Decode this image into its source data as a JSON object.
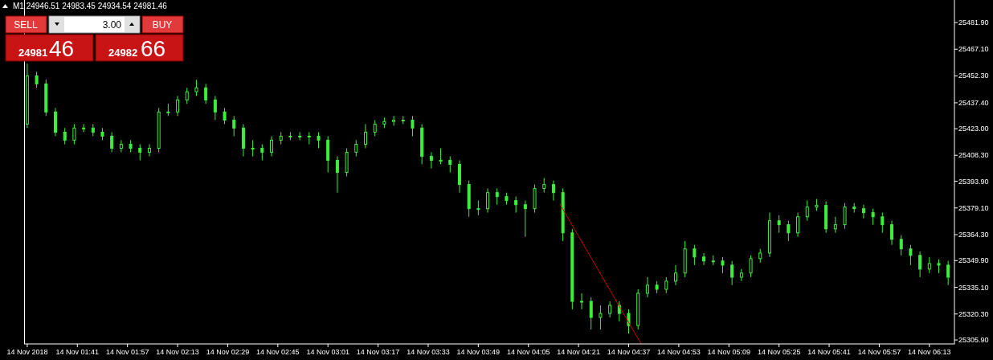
{
  "chart_data": {
    "type": "candlestick",
    "title": "M1  24946.51 24983.45 24934.54 24981.46",
    "color": "#3cf03c",
    "x": [
      "2018-11-14T01:25",
      "2018-11-14T01:28",
      "2018-11-14T01:31",
      "2018-11-14T01:34",
      "2018-11-14T01:37",
      "2018-11-14T01:40",
      "2018-11-14T01:43",
      "2018-11-14T01:46",
      "2018-11-14T01:49",
      "2018-11-14T01:52",
      "2018-11-14T01:55",
      "2018-11-14T01:58",
      "2018-11-14T02:01",
      "2018-11-14T02:04",
      "2018-11-14T02:07",
      "2018-11-14T02:10",
      "2018-11-14T02:13",
      "2018-11-14T02:16",
      "2018-11-14T02:19",
      "2018-11-14T02:22",
      "2018-11-14T02:25",
      "2018-11-14T02:28",
      "2018-11-14T02:31",
      "2018-11-14T02:34",
      "2018-11-14T02:37",
      "2018-11-14T02:40",
      "2018-11-14T02:43",
      "2018-11-14T02:46",
      "2018-11-14T02:49",
      "2018-11-14T02:52",
      "2018-11-14T02:55",
      "2018-11-14T02:58",
      "2018-11-14T03:01",
      "2018-11-14T03:04",
      "2018-11-14T03:07",
      "2018-11-14T03:10",
      "2018-11-14T03:13",
      "2018-11-14T03:16",
      "2018-11-14T03:19",
      "2018-11-14T03:22",
      "2018-11-14T03:25",
      "2018-11-14T03:28",
      "2018-11-14T03:31",
      "2018-11-14T03:34",
      "2018-11-14T03:37",
      "2018-11-14T03:40",
      "2018-11-14T03:43",
      "2018-11-14T03:46",
      "2018-11-14T03:49",
      "2018-11-14T03:52",
      "2018-11-14T03:55",
      "2018-11-14T03:58",
      "2018-11-14T04:01",
      "2018-11-14T04:04",
      "2018-11-14T04:07",
      "2018-11-14T04:10",
      "2018-11-14T04:13",
      "2018-11-14T04:16",
      "2018-11-14T04:19",
      "2018-11-14T04:22",
      "2018-11-14T04:25",
      "2018-11-14T04:28",
      "2018-11-14T04:31",
      "2018-11-14T04:34",
      "2018-11-14T04:37",
      "2018-11-14T04:40",
      "2018-11-14T04:43",
      "2018-11-14T04:46",
      "2018-11-14T04:49",
      "2018-11-14T04:52",
      "2018-11-14T04:55",
      "2018-11-14T04:58",
      "2018-11-14T05:01",
      "2018-11-14T05:04",
      "2018-11-14T05:07",
      "2018-11-14T05:10",
      "2018-11-14T05:13",
      "2018-11-14T05:16",
      "2018-11-14T05:19",
      "2018-11-14T05:22",
      "2018-11-14T05:25",
      "2018-11-14T05:28",
      "2018-11-14T05:31",
      "2018-11-14T05:34",
      "2018-11-14T05:37",
      "2018-11-14T05:40",
      "2018-11-14T05:43",
      "2018-11-14T05:46",
      "2018-11-14T05:49",
      "2018-11-14T05:52",
      "2018-11-14T05:55",
      "2018-11-14T05:58",
      "2018-11-14T06:01",
      "2018-11-14T06:04",
      "2018-11-14T06:07",
      "2018-11-14T06:10",
      "2018-11-14T06:13",
      "2018-11-14T06:16",
      "2018-11-14T06:19"
    ],
    "ohlc": [
      [
        25425.6,
        25459.1,
        25423.4,
        25452.4
      ],
      [
        25452.4,
        25454.6,
        25445.7,
        25447.9
      ],
      [
        25447.9,
        25450.2,
        25430.1,
        25432.3
      ],
      [
        25432.3,
        25434.5,
        25418.9,
        25421.1
      ],
      [
        25421.1,
        25423.4,
        25414.4,
        25416.7
      ],
      [
        25416.7,
        25425.6,
        25414.4,
        25423.4
      ],
      [
        25423.4,
        25425.6,
        25421.1,
        25423.4
      ],
      [
        25423.4,
        25425.6,
        25418.9,
        25421.1
      ],
      [
        25421.1,
        25423.4,
        25416.7,
        25418.9
      ],
      [
        25418.9,
        25421.1,
        25410.0,
        25412.2
      ],
      [
        25412.2,
        25416.7,
        25410.0,
        25414.4
      ],
      [
        25414.4,
        25416.7,
        25410.0,
        25412.2
      ],
      [
        25412.2,
        25414.4,
        25405.5,
        25410.0
      ],
      [
        25410.0,
        25414.4,
        25407.7,
        25412.2
      ],
      [
        25412.2,
        25434.5,
        25410.0,
        25432.3
      ],
      [
        25432.3,
        25436.8,
        25430.1,
        25432.3
      ],
      [
        25432.3,
        25441.2,
        25430.1,
        25439.0
      ],
      [
        25439.0,
        25445.7,
        25436.8,
        25443.5
      ],
      [
        25443.5,
        25450.2,
        25441.2,
        25445.7
      ],
      [
        25445.7,
        25447.9,
        25436.8,
        25439.0
      ],
      [
        25439.0,
        25441.2,
        25427.8,
        25432.3
      ],
      [
        25432.3,
        25434.5,
        25425.6,
        25427.8
      ],
      [
        25427.8,
        25430.1,
        25418.9,
        25423.4
      ],
      [
        25423.4,
        25425.6,
        25407.7,
        25412.2
      ],
      [
        25412.2,
        25416.7,
        25407.7,
        25412.2
      ],
      [
        25412.2,
        25414.4,
        25405.5,
        25410.0
      ],
      [
        25410.0,
        25418.9,
        25407.7,
        25416.7
      ],
      [
        25416.7,
        25421.1,
        25414.4,
        25418.9
      ],
      [
        25418.9,
        25421.1,
        25416.7,
        25418.9
      ],
      [
        25418.9,
        25421.1,
        25416.7,
        25418.9
      ],
      [
        25418.9,
        25421.1,
        25414.4,
        25418.9
      ],
      [
        25418.9,
        25421.1,
        25412.2,
        25416.7
      ],
      [
        25416.7,
        25418.9,
        25398.8,
        25405.5
      ],
      [
        25405.5,
        25407.7,
        25387.6,
        25398.8
      ],
      [
        25398.8,
        25412.2,
        25396.6,
        25410.0
      ],
      [
        25410.0,
        25416.7,
        25407.7,
        25414.4
      ],
      [
        25414.4,
        25425.6,
        25412.2,
        25421.1
      ],
      [
        25421.1,
        25427.8,
        25418.9,
        25425.6
      ],
      [
        25425.6,
        25429.2,
        25423.4,
        25427.0
      ],
      [
        25427.0,
        25430.1,
        25424.7,
        25427.8
      ],
      [
        25427.8,
        25430.1,
        25425.6,
        25427.8
      ],
      [
        25427.8,
        25430.1,
        25418.9,
        25423.4
      ],
      [
        25423.4,
        25425.6,
        25403.3,
        25407.7
      ],
      [
        25407.7,
        25410.0,
        25401.0,
        25405.5
      ],
      [
        25405.5,
        25412.2,
        25403.3,
        25405.5
      ],
      [
        25405.5,
        25407.7,
        25398.8,
        25403.3
      ],
      [
        25403.3,
        25405.5,
        25387.6,
        25392.1
      ],
      [
        25392.1,
        25394.3,
        25374.2,
        25378.7
      ],
      [
        25378.7,
        25383.2,
        25375.1,
        25378.7
      ],
      [
        25378.7,
        25389.9,
        25376.5,
        25387.6
      ],
      [
        25387.6,
        25389.9,
        25380.9,
        25385.4
      ],
      [
        25385.4,
        25387.6,
        25380.9,
        25383.2
      ],
      [
        25383.2,
        25385.4,
        25376.5,
        25380.9
      ],
      [
        25380.9,
        25383.2,
        25363.1,
        25378.7
      ],
      [
        25378.7,
        25392.1,
        25376.5,
        25389.9
      ],
      [
        25389.9,
        25395.7,
        25387.6,
        25392.1
      ],
      [
        25392.1,
        25394.3,
        25383.2,
        25387.6
      ],
      [
        25387.6,
        25389.9,
        25360.8,
        25365.3
      ],
      [
        25365.3,
        25367.5,
        25322.9,
        25327.3
      ],
      [
        25327.3,
        25331.8,
        25322.9,
        25327.3
      ],
      [
        25327.3,
        25329.6,
        25311.7,
        25318.4
      ],
      [
        25318.4,
        25325.1,
        25311.7,
        25320.6
      ],
      [
        25320.6,
        25327.3,
        25318.4,
        25325.1
      ],
      [
        25325.1,
        25327.3,
        25316.2,
        25320.6
      ],
      [
        25320.6,
        25322.9,
        25309.5,
        25313.9
      ],
      [
        25313.9,
        25334.0,
        25311.7,
        25331.8
      ],
      [
        25331.8,
        25340.7,
        25329.6,
        25336.3
      ],
      [
        25336.3,
        25338.5,
        25331.8,
        25334.0
      ],
      [
        25334.0,
        25340.7,
        25331.8,
        25338.5
      ],
      [
        25338.5,
        25347.4,
        25336.3,
        25343.0
      ],
      [
        25343.0,
        25360.8,
        25340.7,
        25356.4
      ],
      [
        25356.4,
        25358.6,
        25347.4,
        25351.9
      ],
      [
        25351.9,
        25354.1,
        25347.4,
        25349.7
      ],
      [
        25349.7,
        25352.8,
        25347.4,
        25349.7
      ],
      [
        25349.7,
        25351.9,
        25343.0,
        25347.4
      ],
      [
        25347.4,
        25349.7,
        25336.3,
        25340.7
      ],
      [
        25340.7,
        25345.2,
        25338.5,
        25343.0
      ],
      [
        25343.0,
        25352.8,
        25340.7,
        25351.0
      ],
      [
        25351.0,
        25356.4,
        25348.8,
        25354.1
      ],
      [
        25354.1,
        25376.5,
        25351.9,
        25372.0
      ],
      [
        25372.0,
        25375.1,
        25365.3,
        25369.8
      ],
      [
        25369.8,
        25372.0,
        25360.8,
        25365.3
      ],
      [
        25365.3,
        25376.5,
        25363.1,
        25374.2
      ],
      [
        25374.2,
        25383.2,
        25372.0,
        25379.6
      ],
      [
        25379.6,
        25384.1,
        25377.4,
        25380.5
      ],
      [
        25380.5,
        25382.7,
        25365.3,
        25367.5
      ],
      [
        25367.5,
        25374.2,
        25365.3,
        25369.8
      ],
      [
        25369.8,
        25381.8,
        25367.5,
        25379.6
      ],
      [
        25379.6,
        25381.8,
        25376.5,
        25378.7
      ],
      [
        25378.7,
        25380.9,
        25373.3,
        25376.5
      ],
      [
        25376.5,
        25378.7,
        25369.8,
        25374.2
      ],
      [
        25374.2,
        25376.5,
        25365.3,
        25369.8
      ],
      [
        25369.8,
        25372.0,
        25358.6,
        25361.7
      ],
      [
        25361.7,
        25364.0,
        25352.8,
        25356.4
      ],
      [
        25356.4,
        25358.6,
        25347.4,
        25352.8
      ],
      [
        25352.8,
        25355.0,
        25340.7,
        25345.2
      ],
      [
        25345.2,
        25351.9,
        25343.0,
        25348.3
      ],
      [
        25348.3,
        25350.6,
        25343.0,
        25347.4
      ],
      [
        25347.4,
        25349.7,
        25336.3,
        25340.7
      ]
    ],
    "series": [
      {
        "type": "line",
        "color": "#d00000",
        "x": [
          "2018-11-14T04:15",
          "2018-11-14T04:41"
        ],
        "values": [
          25381.4,
          25303.7
        ]
      }
    ],
    "xlim": [
      "2018-11-14T01:24",
      "2018-11-14T06:21"
    ],
    "xticks": [
      {
        "value": "2018-11-14T01:25",
        "label": "14 Nov 2018"
      },
      {
        "value": "2018-11-14T01:41",
        "label": "14 Nov 01:41"
      },
      {
        "value": "2018-11-14T01:57",
        "label": "14 Nov 01:57"
      },
      {
        "value": "2018-11-14T02:13",
        "label": "14 Nov 02:13"
      },
      {
        "value": "2018-11-14T02:29",
        "label": "14 Nov 02:29"
      },
      {
        "value": "2018-11-14T02:45",
        "label": "14 Nov 02:45"
      },
      {
        "value": "2018-11-14T03:01",
        "label": "14 Nov 03:01"
      },
      {
        "value": "2018-11-14T03:17",
        "label": "14 Nov 03:17"
      },
      {
        "value": "2018-11-14T03:33",
        "label": "14 Nov 03:33"
      },
      {
        "value": "2018-11-14T03:49",
        "label": "14 Nov 03:49"
      },
      {
        "value": "2018-11-14T04:05",
        "label": "14 Nov 04:05"
      },
      {
        "value": "2018-11-14T04:21",
        "label": "14 Nov 04:21"
      },
      {
        "value": "2018-11-14T04:37",
        "label": "14 Nov 04:37"
      },
      {
        "value": "2018-11-14T04:53",
        "label": "14 Nov 04:53"
      },
      {
        "value": "2018-11-14T05:09",
        "label": "14 Nov 05:09"
      },
      {
        "value": "2018-11-14T05:25",
        "label": "14 Nov 05:25"
      },
      {
        "value": "2018-11-14T05:41",
        "label": "14 Nov 05:41"
      },
      {
        "value": "2018-11-14T05:57",
        "label": "14 Nov 05:57"
      },
      {
        "value": "2018-11-14T06:13",
        "label": "14 Nov 06:13"
      }
    ],
    "ylim": [
      25303.7,
      25494.4
    ],
    "yticks": [
      {
        "value": 25481.9,
        "label": "25481.90"
      },
      {
        "value": 25467.1,
        "label": "25467.10"
      },
      {
        "value": 25452.3,
        "label": "25452.30"
      },
      {
        "value": 25437.4,
        "label": "25437.40"
      },
      {
        "value": 25423.0,
        "label": "25423.00"
      },
      {
        "value": 25408.3,
        "label": "25408.30"
      },
      {
        "value": 25393.9,
        "label": "25393.90"
      },
      {
        "value": 25379.1,
        "label": "25379.10"
      },
      {
        "value": 25364.3,
        "label": "25364.30"
      },
      {
        "value": 25349.9,
        "label": "25349.90"
      },
      {
        "value": 25335.1,
        "label": "25335.10"
      },
      {
        "value": 25320.3,
        "label": "25320.30"
      },
      {
        "value": 25305.9,
        "label": "25305.90"
      }
    ],
    "annotations": [
      "SELL",
      "3.00",
      "BUY",
      "24981",
      "46",
      "24982",
      "66"
    ]
  }
}
